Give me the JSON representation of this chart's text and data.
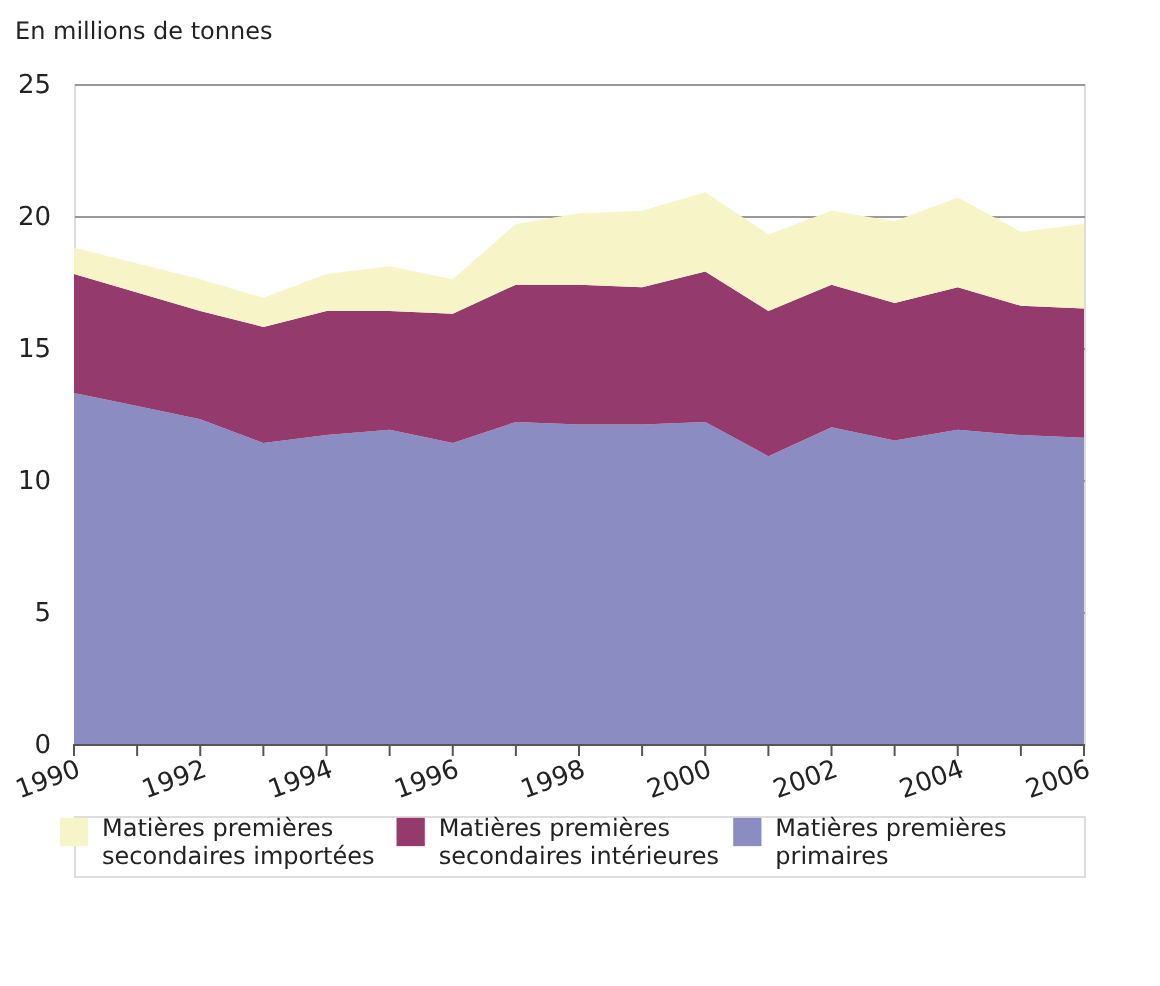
{
  "chart_data": {
    "type": "area",
    "stacked": true,
    "ylabel": "En millions de tonnes",
    "x": [
      1990,
      1991,
      1992,
      1993,
      1994,
      1995,
      1996,
      1997,
      1998,
      1999,
      2000,
      2001,
      2002,
      2003,
      2004,
      2005,
      2006
    ],
    "series": [
      {
        "name": "Matières premières primaires",
        "color": "#8a8cc2",
        "values": [
          13.3,
          12.8,
          12.3,
          11.4,
          11.7,
          11.9,
          11.4,
          12.2,
          12.1,
          12.1,
          12.2,
          10.9,
          12.0,
          11.5,
          11.9,
          11.7,
          11.6
        ]
      },
      {
        "name": "Matières premières secondaires intérieures",
        "color": "#953a6c",
        "values": [
          4.5,
          4.3,
          4.1,
          4.4,
          4.7,
          4.5,
          4.9,
          5.2,
          5.3,
          5.2,
          5.7,
          5.5,
          5.4,
          5.2,
          5.4,
          4.9,
          4.9
        ]
      },
      {
        "name": "Matières premières secondaires importées",
        "color": "#f7f5c8",
        "values": [
          1.0,
          1.1,
          1.2,
          1.1,
          1.4,
          1.7,
          1.3,
          2.3,
          2.7,
          2.9,
          3.0,
          2.9,
          2.8,
          3.1,
          3.4,
          2.8,
          3.2
        ]
      }
    ],
    "xlim": [
      1990,
      2006
    ],
    "xticks": [
      1990,
      {
        "value": 1991,
        "label": null
      },
      1992,
      {
        "value": 1993,
        "label": null
      },
      1994,
      {
        "value": 1995,
        "label": null
      },
      1996,
      {
        "value": 1997,
        "label": null
      },
      1998,
      {
        "value": 1999,
        "label": null
      },
      2000,
      {
        "value": 2001,
        "label": null
      },
      2002,
      {
        "value": 2003,
        "label": null
      },
      2004,
      {
        "value": 2005,
        "label": null
      },
      2006
    ],
    "ylim": [
      0,
      25
    ],
    "yticks": [
      0,
      5,
      10,
      15,
      20,
      25
    ],
    "grid": "y",
    "legend": "bottom"
  }
}
